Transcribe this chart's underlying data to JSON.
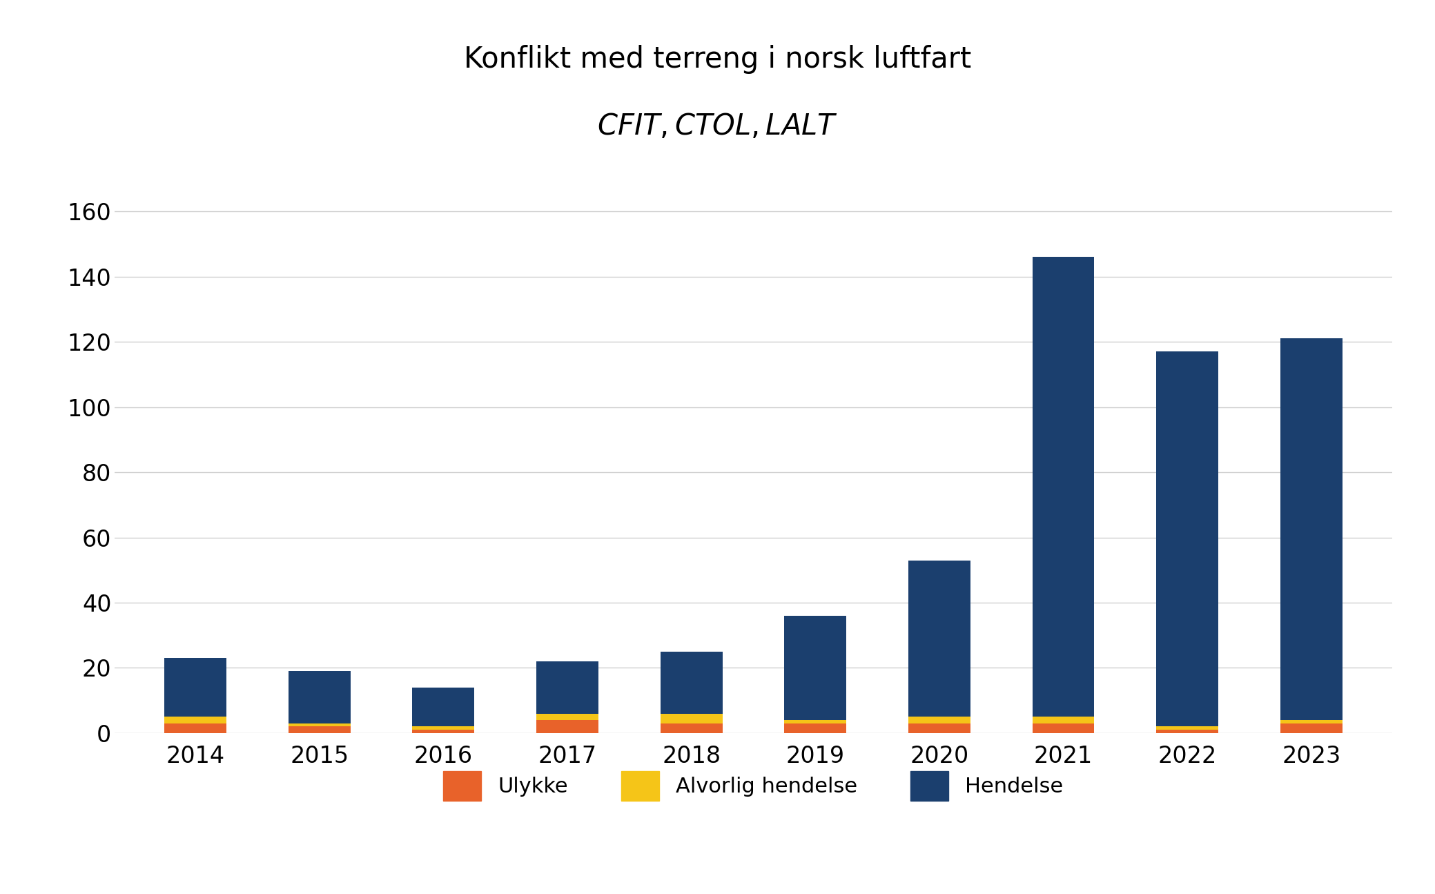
{
  "years": [
    "2014",
    "2015",
    "2016",
    "2017",
    "2018",
    "2019",
    "2020",
    "2021",
    "2022",
    "2023"
  ],
  "ulykke": [
    3,
    2,
    1,
    4,
    3,
    3,
    3,
    3,
    1,
    3
  ],
  "alvorlig_hendelse": [
    2,
    1,
    1,
    2,
    3,
    1,
    2,
    2,
    1,
    1
  ],
  "hendelse": [
    18,
    16,
    12,
    16,
    19,
    32,
    48,
    141,
    115,
    117
  ],
  "ulykke_color": "#E8622A",
  "alvorlig_color": "#F5C518",
  "hendelse_color": "#1B3F6E",
  "title_line1": "Konflikt med terreng i norsk luftfart",
  "legend_labels": [
    "Ulykke",
    "Alvorlig hendelse",
    "Hendelse"
  ],
  "ylim": [
    0,
    170
  ],
  "yticks": [
    0,
    20,
    40,
    60,
    80,
    100,
    120,
    140,
    160
  ],
  "background_color": "#FFFFFF",
  "grid_color": "#D0D0D0",
  "title_fontsize": 30,
  "subtitle_fontsize": 30,
  "tick_fontsize": 24,
  "legend_fontsize": 22,
  "bar_width": 0.5
}
